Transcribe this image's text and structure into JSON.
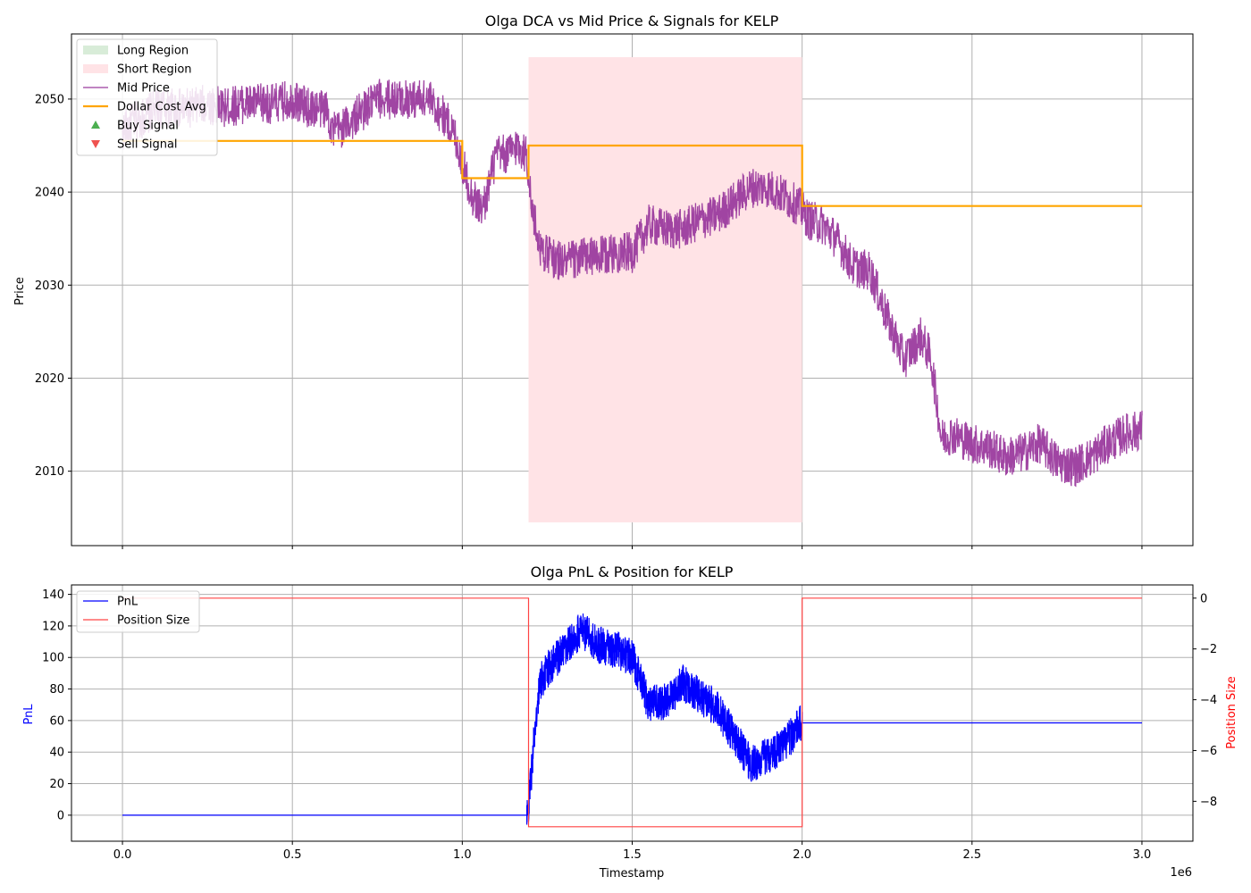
{
  "chart_data": [
    {
      "type": "line",
      "title": "Olga DCA vs Mid Price & Signals for KELP",
      "ylabel": "Price",
      "xlabel": "",
      "xlim": [
        -150000,
        3150000
      ],
      "ylim": [
        2002,
        2057
      ],
      "x_ticks": [
        0,
        500000,
        1000000,
        1500000,
        2000000,
        2500000,
        3000000
      ],
      "y_ticks": [
        2010,
        2020,
        2030,
        2040,
        2050
      ],
      "y_tick_labels": [
        "2010",
        "2020",
        "2030",
        "2040",
        "2050"
      ],
      "grid": true,
      "legend_position": "upper left",
      "legend": [
        {
          "label": "Long Region",
          "kind": "patch",
          "color": "#d8ecd8"
        },
        {
          "label": "Short Region",
          "kind": "patch",
          "color": "#ffe3e6"
        },
        {
          "label": "Mid Price",
          "kind": "line",
          "color": "#9b3b9e"
        },
        {
          "label": "Dollar Cost Avg",
          "kind": "line",
          "color": "#ffa500"
        },
        {
          "label": "Buy Signal",
          "kind": "marker-up",
          "color": "#4caf50"
        },
        {
          "label": "Sell Signal",
          "kind": "marker-down",
          "color": "#ef5350"
        }
      ],
      "regions": [
        {
          "name": "Short Region",
          "x0": 1195000,
          "x1": 2000000,
          "y0": 2004.5,
          "y1": 2054.5,
          "color": "#ffe3e6"
        }
      ],
      "series": [
        {
          "name": "Mid Price",
          "color": "#9b3b9e",
          "band": 2.2,
          "x": [
            0,
            30000,
            60000,
            100000,
            150000,
            200000,
            250000,
            300000,
            350000,
            400000,
            450000,
            500000,
            550000,
            600000,
            620000,
            650000,
            700000,
            750000,
            800000,
            850000,
            900000,
            950000,
            980000,
            1000000,
            1030000,
            1060000,
            1100000,
            1130000,
            1160000,
            1190000,
            1205000,
            1230000,
            1260000,
            1300000,
            1350000,
            1400000,
            1450000,
            1500000,
            1550000,
            1600000,
            1650000,
            1700000,
            1750000,
            1800000,
            1850000,
            1900000,
            1950000,
            1990000,
            2020000,
            2060000,
            2100000,
            2150000,
            2200000,
            2250000,
            2300000,
            2350000,
            2380000,
            2410000,
            2440000,
            2500000,
            2550000,
            2600000,
            2650000,
            2700000,
            2750000,
            2800000,
            2850000,
            2900000,
            2950000,
            3000000
          ],
          "y": [
            2046.5,
            2047.5,
            2048,
            2049,
            2049,
            2049,
            2049.5,
            2049,
            2049.5,
            2049.5,
            2049.5,
            2050,
            2049,
            2049,
            2046.5,
            2047,
            2048.5,
            2050,
            2050,
            2050,
            2050,
            2048,
            2046,
            2043,
            2039.5,
            2038,
            2044,
            2044,
            2045,
            2044,
            2038,
            2034,
            2033,
            2032.5,
            2033,
            2033,
            2033.5,
            2033.5,
            2036.5,
            2036,
            2036,
            2037,
            2037.5,
            2039,
            2040.5,
            2040.5,
            2039.5,
            2038.5,
            2037,
            2036.5,
            2035,
            2032,
            2031.5,
            2026.5,
            2022,
            2024.5,
            2022,
            2013.5,
            2014,
            2013,
            2012.5,
            2011.5,
            2012,
            2013,
            2011,
            2010.5,
            2011.5,
            2013,
            2014,
            2014.5
          ]
        },
        {
          "name": "Dollar Cost Avg",
          "color": "#ffa500",
          "step": true,
          "x": [
            0,
            1000000,
            1000000,
            1195000,
            1195000,
            2000000,
            2000000,
            3000000
          ],
          "y": [
            2045.5,
            2045.5,
            2041.5,
            2041.5,
            2045,
            2045,
            2038.5,
            2038.5
          ]
        }
      ]
    },
    {
      "type": "line",
      "title": "Olga PnL & Position for KELP",
      "xlabel": "Timestamp",
      "ylabel": "PnL",
      "y2label": "Position Size",
      "x_offset_label": "1e6",
      "xlim": [
        -150000,
        3150000
      ],
      "ylim": [
        -16.5,
        146
      ],
      "y2lim": [
        -9.57,
        0.52
      ],
      "x_ticks": [
        0,
        500000,
        1000000,
        1500000,
        2000000,
        2500000,
        3000000
      ],
      "x_tick_labels": [
        "0.0",
        "0.5",
        "1.0",
        "1.5",
        "2.0",
        "2.5",
        "3.0"
      ],
      "y_ticks": [
        0,
        20,
        40,
        60,
        80,
        100,
        120,
        140
      ],
      "y_tick_labels": [
        "0",
        "20",
        "40",
        "60",
        "80",
        "100",
        "120",
        "140"
      ],
      "y2_ticks": [
        0,
        -2,
        -4,
        -6,
        -8
      ],
      "y2_tick_labels": [
        "0",
        "−2",
        "−4",
        "−6",
        "−8"
      ],
      "grid": true,
      "legend_position": "upper left",
      "legend": [
        {
          "label": "PnL",
          "kind": "line",
          "color": "#0000ff"
        },
        {
          "label": "Position Size",
          "kind": "line",
          "color": "#ff4444"
        }
      ],
      "series": [
        {
          "name": "PnL",
          "color": "#0000ff",
          "axis": "left",
          "band": 12,
          "x": [
            0,
            1190000,
            1195000,
            1205000,
            1215000,
            1230000,
            1260000,
            1300000,
            1350000,
            1400000,
            1450000,
            1500000,
            1550000,
            1600000,
            1650000,
            1700000,
            1750000,
            1800000,
            1850000,
            1900000,
            1950000,
            1995000,
            2000000,
            3000000
          ],
          "y": [
            0,
            0,
            5,
            30,
            60,
            85,
            95,
            105,
            118,
            108,
            105,
            100,
            70,
            72,
            84,
            75,
            68,
            50,
            32,
            38,
            45,
            58,
            58.5,
            58.5
          ],
          "flat_after": 2000000
        },
        {
          "name": "Position Size",
          "color": "#ff4444",
          "axis": "right",
          "step": true,
          "x": [
            0,
            1195000,
            1195000,
            2000000,
            2000000,
            3000000
          ],
          "y": [
            0,
            0,
            -9,
            -9,
            0,
            0
          ]
        }
      ]
    }
  ]
}
